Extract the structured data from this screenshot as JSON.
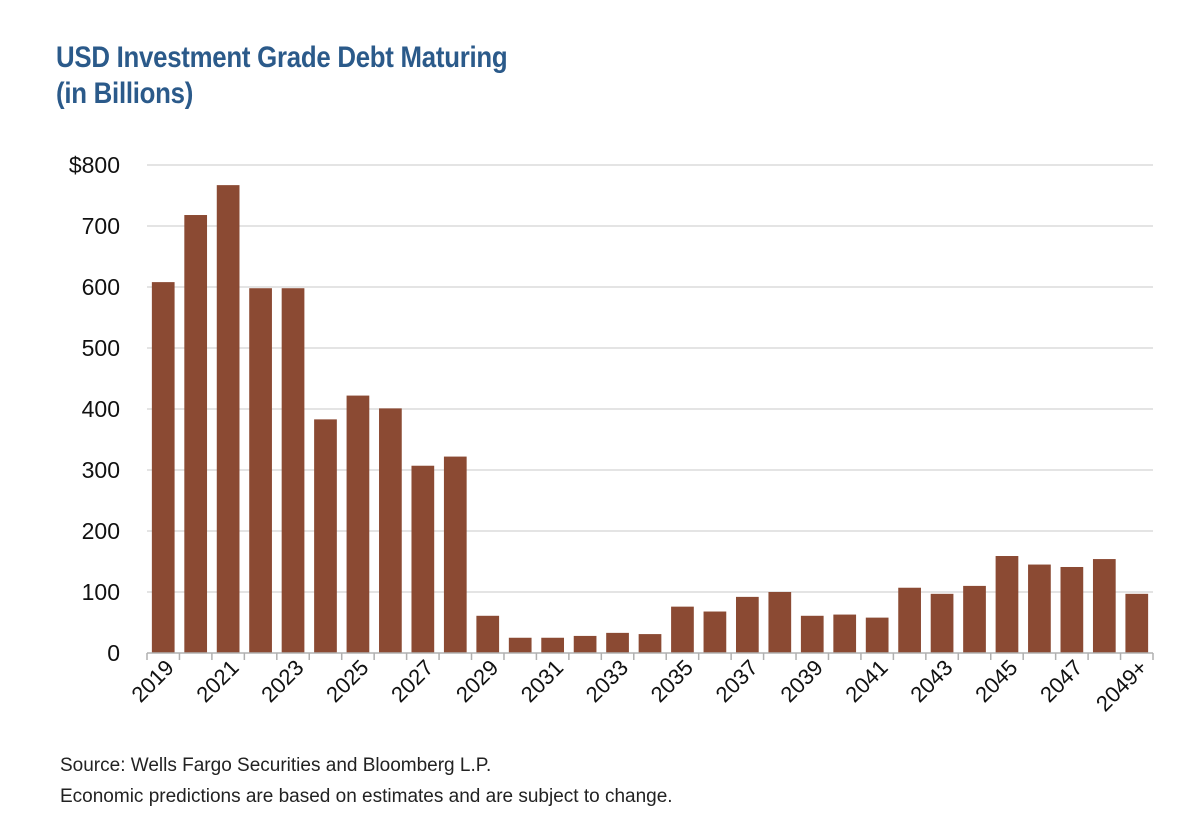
{
  "chart_data": {
    "type": "bar",
    "title_line1": "USD Investment Grade Debt Maturing",
    "title_line2": "(in Billions)",
    "xlabel": "",
    "ylabel": "",
    "ylim": [
      0,
      800
    ],
    "yticks": [
      0,
      100,
      200,
      300,
      400,
      500,
      600,
      700,
      800
    ],
    "ytick_labels": [
      "0",
      "100",
      "200",
      "300",
      "400",
      "500",
      "600",
      "700",
      "$800"
    ],
    "grid": true,
    "categories": [
      "2019",
      "2020",
      "2021",
      "2022",
      "2023",
      "2024",
      "2025",
      "2026",
      "2027",
      "2028",
      "2029",
      "2030",
      "2031",
      "2032",
      "2033",
      "2034",
      "2035",
      "2036",
      "2037",
      "2038",
      "2039",
      "2040",
      "2041",
      "2042",
      "2043",
      "2044",
      "2045",
      "2046",
      "2047",
      "2048",
      "2049+"
    ],
    "xtick_labels_shown": [
      "2019",
      "",
      "2021",
      "",
      "2023",
      "",
      "2025",
      "",
      "2027",
      "",
      "2029",
      "",
      "2031",
      "",
      "2033",
      "",
      "2035",
      "",
      "2037",
      "",
      "2039",
      "",
      "2041",
      "",
      "2043",
      "",
      "2045",
      "",
      "2047",
      "",
      "2049+"
    ],
    "values": [
      608,
      718,
      767,
      598,
      598,
      383,
      422,
      401,
      307,
      322,
      61,
      25,
      25,
      28,
      33,
      31,
      76,
      68,
      92,
      100,
      61,
      63,
      58,
      107,
      97,
      110,
      159,
      145,
      141,
      154,
      97
    ],
    "bar_color": "#8b4a33",
    "grid_color": "#dcdcdc",
    "title_color": "#2b5a8a"
  },
  "footnotes": {
    "source": "Source: Wells Fargo Securities and Bloomberg L.P.",
    "disclaimer": "Economic predictions are based on estimates and are subject to change."
  }
}
